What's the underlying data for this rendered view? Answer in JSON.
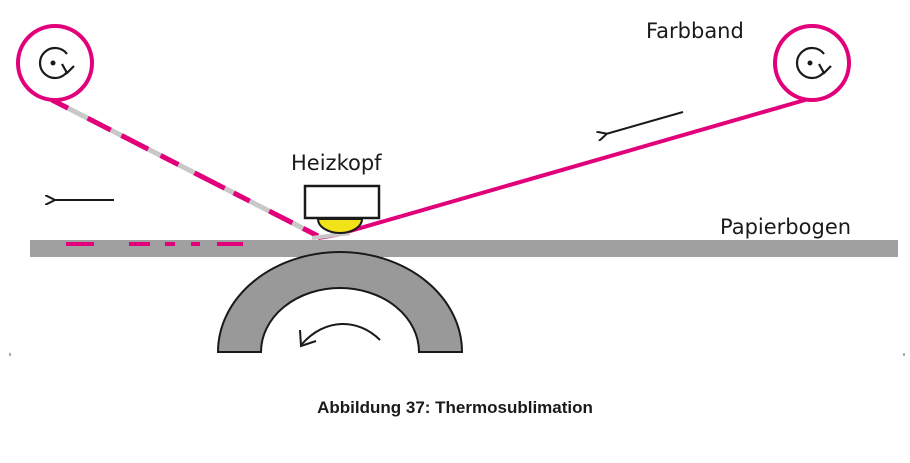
{
  "labels": {
    "ribbon": "Farbband",
    "heater": "Heizkopf",
    "paper": "Papierbogen"
  },
  "caption": "Abbildung 37: Thermosublimation",
  "colors": {
    "ribbon": "#e2007a",
    "paper": "#a0a0a0",
    "drum": "#999999",
    "heater_element": "#f2e21a",
    "spent_ribbon": "#c8c8c8",
    "arrow": "#1a1a1a"
  },
  "icons": {
    "left_spool": "rotation-clockwise-icon",
    "right_spool": "rotation-clockwise-icon",
    "drum_rotation": "counterclockwise-arrow-icon"
  }
}
